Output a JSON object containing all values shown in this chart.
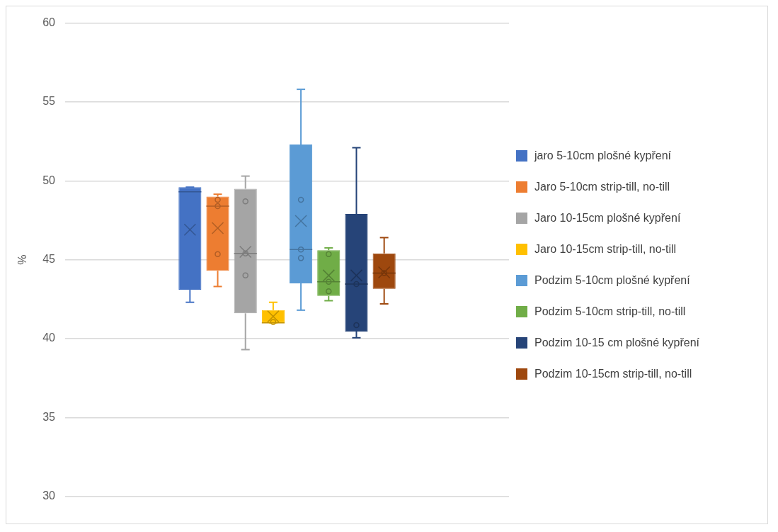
{
  "chart_data": {
    "type": "box",
    "ylabel": "%",
    "categories": [
      null
    ],
    "ylim": [
      30,
      60
    ],
    "yticks": [
      30,
      35,
      40,
      45,
      50,
      55,
      60
    ],
    "grid": "y",
    "legend": "right",
    "series": [
      {
        "name": "jaro 5-10cm plošné kypření",
        "color": "#4472c4",
        "boxes": [
          {
            "low": 42.3,
            "q1": 43.1,
            "median": 49.3,
            "q3": 49.6,
            "high": 49.6,
            "mean": 46.9
          }
        ]
      },
      {
        "name": "Jaro 5-10cm strip-till, no-till",
        "color": "#ed7d31",
        "boxes": [
          {
            "low": 43.3,
            "q1": 44.3,
            "median": 48.4,
            "q3": 49.0,
            "high": 49.15,
            "mean": 47.0,
            "outliers": [
              48.8,
              48.4,
              45.35
            ]
          }
        ]
      },
      {
        "name": "Jaro 10-15cm plošné kypření",
        "color": "#a5a5a5",
        "boxes": [
          {
            "low": 39.3,
            "q1": 41.6,
            "median": 45.4,
            "q3": 49.5,
            "high": 50.3,
            "mean": 45.5,
            "outliers": [
              48.7,
              45.4,
              44.0
            ]
          }
        ]
      },
      {
        "name": "Jaro 10-15cm strip-till, no-till",
        "color": "#ffc000",
        "boxes": [
          {
            "low": 41.0,
            "q1": 41.0,
            "median": 41.0,
            "q3": 41.8,
            "high": 42.3,
            "mean": 41.4,
            "outliers": [
              41.05
            ]
          }
        ]
      },
      {
        "name": "Podzim 5-10cm plošné kypření",
        "color": "#5b9bd5",
        "boxes": [
          {
            "low": 41.8,
            "q1": 43.5,
            "median": 45.65,
            "q3": 52.3,
            "high": 55.8,
            "mean": 47.45,
            "outliers": [
              48.8,
              45.65,
              45.1
            ]
          }
        ]
      },
      {
        "name": "Podzim 5-10cm strip-till, no-till",
        "color": "#70ad47",
        "boxes": [
          {
            "low": 42.4,
            "q1": 42.7,
            "median": 43.6,
            "q3": 45.6,
            "high": 45.75,
            "mean": 44.0,
            "outliers": [
              45.35,
              43.6,
              43.0
            ]
          }
        ]
      },
      {
        "name": "Podzim 10-15 cm plošné kypření",
        "color": "#264478",
        "boxes": [
          {
            "low": 40.05,
            "q1": 40.45,
            "median": 43.45,
            "q3": 47.9,
            "high": 52.1,
            "mean": 44.0,
            "outliers": [
              43.45,
              40.85
            ]
          }
        ]
      },
      {
        "name": "Podzim 10-15cm strip-till, no-till",
        "color": "#9e480e",
        "boxes": [
          {
            "low": 42.2,
            "q1": 43.15,
            "median": 44.15,
            "q3": 45.4,
            "high": 46.4,
            "mean": 44.2,
            "outliers": [
              44.15
            ]
          }
        ]
      }
    ]
  }
}
